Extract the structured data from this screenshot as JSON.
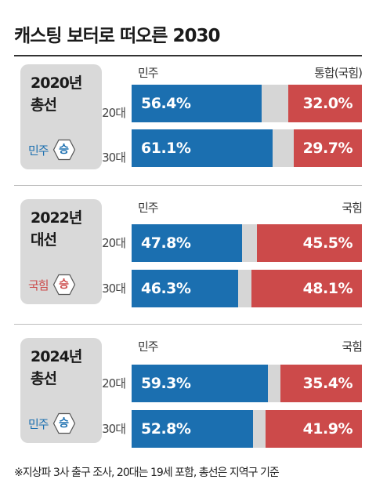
{
  "title": "캐스팅 보터로 떠오른 2030",
  "footnote": "※지상파 3사 출구 조사, 20대는 19세 포함, 총선은 지역구 기준",
  "colors": {
    "democratic": "#1b6fb0",
    "opponent": "#cc4a4a",
    "neutral": "#d6d6d6",
    "card": "#d9d9d9"
  },
  "chart_data": {
    "type": "bar",
    "orientation": "horizontal",
    "stacked": true,
    "xlim": [
      0,
      100
    ],
    "unit": "%",
    "panels": [
      {
        "event": "2020년 총선",
        "event_line1": "2020년",
        "event_line2": "총선",
        "winner_party": "민주",
        "winner_mark": "승",
        "winner_side": "left",
        "left_label": "민주",
        "right_label": "통합(국힘)",
        "categories": [
          "20대",
          "30대"
        ],
        "series": [
          {
            "name": "민주",
            "values": [
              56.4,
              61.1
            ],
            "labels": [
              "56.4%",
              "61.1%"
            ]
          },
          {
            "name": "통합(국힘)",
            "values": [
              32.0,
              29.7
            ],
            "labels": [
              "32.0%",
              "29.7%"
            ]
          }
        ]
      },
      {
        "event": "2022년 대선",
        "event_line1": "2022년",
        "event_line2": "대선",
        "winner_party": "국힘",
        "winner_mark": "승",
        "winner_side": "right",
        "left_label": "민주",
        "right_label": "국힘",
        "categories": [
          "20대",
          "30대"
        ],
        "series": [
          {
            "name": "민주",
            "values": [
              47.8,
              46.3
            ],
            "labels": [
              "47.8%",
              "46.3%"
            ]
          },
          {
            "name": "국힘",
            "values": [
              45.5,
              48.1
            ],
            "labels": [
              "45.5%",
              "48.1%"
            ]
          }
        ]
      },
      {
        "event": "2024년 총선",
        "event_line1": "2024년",
        "event_line2": "총선",
        "winner_party": "민주",
        "winner_mark": "승",
        "winner_side": "left",
        "left_label": "민주",
        "right_label": "국힘",
        "categories": [
          "20대",
          "30대"
        ],
        "series": [
          {
            "name": "민주",
            "values": [
              59.3,
              52.8
            ],
            "labels": [
              "59.3%",
              "52.8%"
            ]
          },
          {
            "name": "국힘",
            "values": [
              35.4,
              41.9
            ],
            "labels": [
              "35.4%",
              "41.9%"
            ]
          }
        ]
      }
    ]
  }
}
